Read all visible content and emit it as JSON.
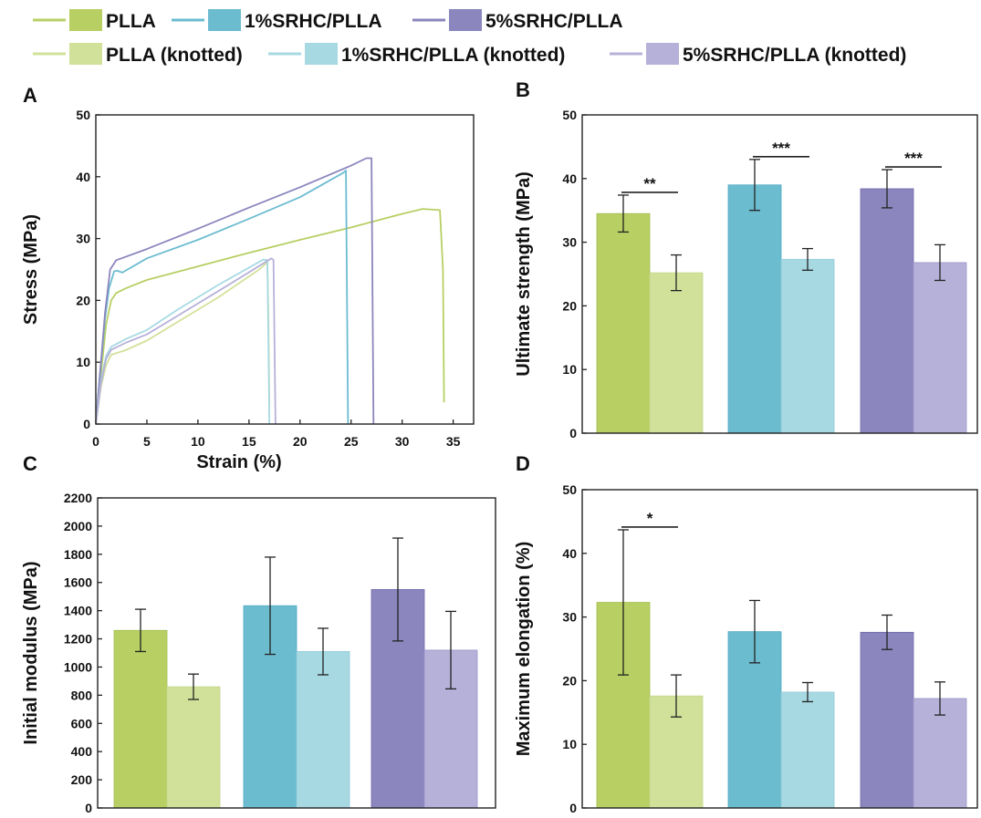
{
  "colors": {
    "PLLA": "#b8cf63",
    "PLLA (knotted)": "#d2e19a",
    "1%SRHC/PLLA": "#6cbcd0",
    "1%SRHC/PLLA (knotted)": "#a7d9e3",
    "5%SRHC/PLLA": "#8b86be",
    "5%SRHC/PLLA (knotted)": "#b6b1d9"
  },
  "legend": [
    "PLLA",
    "1%SRHC/PLLA",
    "5%SRHC/PLLA",
    "PLLA (knotted)",
    "1%SRHC/PLLA (knotted)",
    "5%SRHC/PLLA (knotted)"
  ],
  "chart_data": [
    {
      "panel": "A",
      "type": "line",
      "xlabel": "Strain (%)",
      "ylabel": "Stress (MPa)",
      "xlim": [
        0,
        37
      ],
      "ylim": [
        0,
        50
      ],
      "xticks": [
        0,
        5,
        10,
        15,
        20,
        25,
        30,
        35
      ],
      "yticks": [
        0,
        10,
        20,
        30,
        40,
        50
      ],
      "series": [
        {
          "name": "PLLA",
          "x": [
            0,
            0.5,
            1.0,
            1.5,
            2.0,
            3,
            5,
            10,
            15,
            20,
            25,
            30,
            32,
            33.7,
            34.0,
            34.1
          ],
          "y": [
            0,
            8,
            16,
            20,
            21.2,
            22,
            23.3,
            25.5,
            27.7,
            29.8,
            31.8,
            34,
            34.8,
            34.6,
            25,
            3.5
          ]
        },
        {
          "name": "1%SRHC/PLLA",
          "x": [
            0,
            0.4,
            0.9,
            1.3,
            1.8,
            2.1,
            2.6,
            5,
            10,
            15,
            20,
            24.2,
            24.5,
            24.7
          ],
          "y": [
            0,
            8,
            17,
            22,
            24.7,
            24.8,
            24.5,
            26.8,
            29.8,
            33.2,
            36.7,
            40.6,
            41,
            0
          ]
        },
        {
          "name": "5%SRHC/PLLA",
          "x": [
            0,
            0.4,
            0.9,
            1.4,
            2.0,
            2.5,
            5,
            10,
            15,
            20,
            25,
            26.5,
            27.0,
            27.2
          ],
          "y": [
            0,
            8,
            18,
            25,
            26.5,
            26.8,
            28.3,
            31.6,
            35,
            38.3,
            41.8,
            43,
            43,
            0
          ]
        },
        {
          "name": "PLLA (knotted)",
          "x": [
            0,
            0.5,
            1.0,
            1.5,
            3,
            5,
            8,
            12,
            16,
            16.8,
            16.9,
            17.0
          ],
          "y": [
            0,
            6,
            9.5,
            11.2,
            12,
            13.5,
            16.5,
            20.5,
            25,
            26.2,
            18,
            3
          ]
        },
        {
          "name": "1%SRHC/PLLA (knotted)",
          "x": [
            0,
            0.5,
            1.0,
            1.5,
            3,
            5,
            8,
            12,
            16.4,
            16.8,
            17.0
          ],
          "y": [
            0,
            7,
            11,
            12.5,
            13.8,
            15.2,
            18.5,
            22.5,
            26.6,
            26.5,
            0
          ]
        },
        {
          "name": "5%SRHC/PLLA (knotted)",
          "x": [
            0,
            0.5,
            1.0,
            1.5,
            3,
            5,
            8,
            12,
            17.2,
            17.4,
            17.6
          ],
          "y": [
            0,
            6.5,
            10.5,
            12,
            13.2,
            14.5,
            17.5,
            21.5,
            26.8,
            26.5,
            0
          ]
        }
      ]
    },
    {
      "panel": "B",
      "type": "bar",
      "ylabel": "Ultimate strength (MPa)",
      "ylim": [
        0,
        50
      ],
      "yticks": [
        0,
        10,
        20,
        30,
        40,
        50
      ],
      "groups": [
        {
          "name": "PLLA",
          "bars": [
            {
              "series": "PLLA",
              "value": 34.5,
              "err": 2.9
            },
            {
              "series": "PLLA (knotted)",
              "value": 25.2,
              "err": 2.8
            }
          ],
          "sig": "**"
        },
        {
          "name": "1%SRHC/PLLA",
          "bars": [
            {
              "series": "1%SRHC/PLLA",
              "value": 39.0,
              "err": 4.0
            },
            {
              "series": "1%SRHC/PLLA (knotted)",
              "value": 27.3,
              "err": 1.7
            }
          ],
          "sig": "***"
        },
        {
          "name": "5%SRHC/PLLA",
          "bars": [
            {
              "series": "5%SRHC/PLLA",
              "value": 38.4,
              "err": 3.0
            },
            {
              "series": "5%SRHC/PLLA (knotted)",
              "value": 26.8,
              "err": 2.8
            }
          ],
          "sig": "***"
        }
      ]
    },
    {
      "panel": "C",
      "type": "bar",
      "ylabel": "Initial modulus (MPa)",
      "ylim": [
        0,
        2200
      ],
      "yticks": [
        0,
        200,
        400,
        600,
        800,
        1000,
        1200,
        1400,
        1600,
        1800,
        2000,
        2200
      ],
      "groups": [
        {
          "name": "PLLA",
          "bars": [
            {
              "series": "PLLA",
              "value": 1260,
              "err": 150
            },
            {
              "series": "PLLA (knotted)",
              "value": 860,
              "err": 90
            }
          ],
          "sig": ""
        },
        {
          "name": "1%SRHC/PLLA",
          "bars": [
            {
              "series": "1%SRHC/PLLA",
              "value": 1435,
              "err": 345
            },
            {
              "series": "1%SRHC/PLLA (knotted)",
              "value": 1110,
              "err": 165
            }
          ],
          "sig": ""
        },
        {
          "name": "5%SRHC/PLLA",
          "bars": [
            {
              "series": "5%SRHC/PLLA",
              "value": 1550,
              "err": 365
            },
            {
              "series": "5%SRHC/PLLA (knotted)",
              "value": 1120,
              "err": 275
            }
          ],
          "sig": ""
        }
      ]
    },
    {
      "panel": "D",
      "type": "bar",
      "ylabel": "Maximum elongation (%)",
      "ylim": [
        0,
        50
      ],
      "yticks": [
        0,
        10,
        20,
        30,
        40,
        50
      ],
      "groups": [
        {
          "name": "PLLA",
          "bars": [
            {
              "series": "PLLA",
              "value": 32.3,
              "err": 11.4
            },
            {
              "series": "PLLA (knotted)",
              "value": 17.6,
              "err": 3.3
            }
          ],
          "sig": "*"
        },
        {
          "name": "1%SRHC/PLLA",
          "bars": [
            {
              "series": "1%SRHC/PLLA",
              "value": 27.7,
              "err": 4.9
            },
            {
              "series": "1%SRHC/PLLA (knotted)",
              "value": 18.2,
              "err": 1.5
            }
          ],
          "sig": ""
        },
        {
          "name": "5%SRHC/PLLA",
          "bars": [
            {
              "series": "5%SRHC/PLLA",
              "value": 27.6,
              "err": 2.7
            },
            {
              "series": "5%SRHC/PLLA (knotted)",
              "value": 17.2,
              "err": 2.6
            }
          ],
          "sig": ""
        }
      ]
    }
  ]
}
